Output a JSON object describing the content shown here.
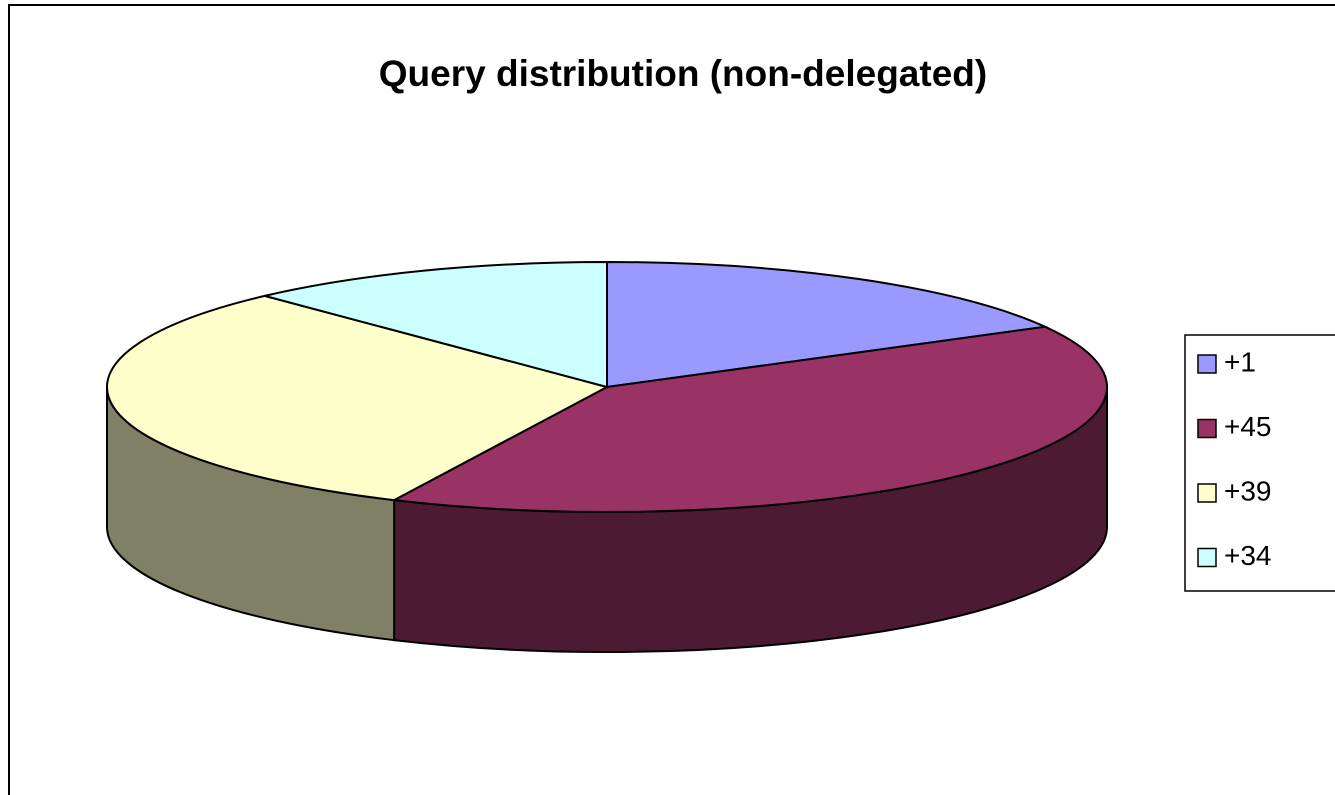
{
  "chart_data": {
    "type": "pie",
    "title": "Query distribution (non-delegated)",
    "categories": [
      "+1",
      "+45",
      "+39",
      "+34"
    ],
    "values": [
      17,
      40,
      31,
      12
    ],
    "colors": [
      "#9999ff",
      "#993366",
      "#ffffcc",
      "#ccffff"
    ],
    "legend": "right"
  }
}
